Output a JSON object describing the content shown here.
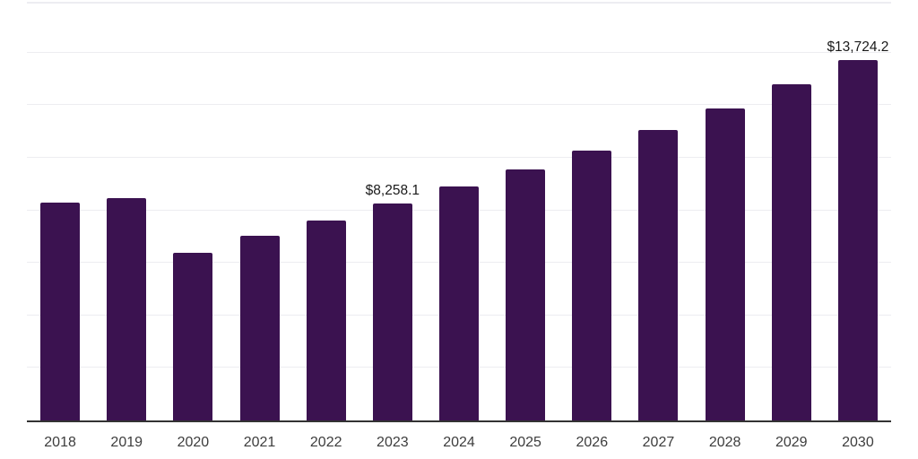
{
  "chart_data": {
    "type": "bar",
    "title": "",
    "xlabel": "",
    "ylabel": "",
    "categories": [
      "2018",
      "2019",
      "2020",
      "2021",
      "2022",
      "2023",
      "2024",
      "2025",
      "2026",
      "2027",
      "2028",
      "2029",
      "2030"
    ],
    "values": [
      8300,
      8460,
      6380,
      7040,
      7620,
      8258.1,
      8900,
      9560,
      10260,
      11070,
      11880,
      12800,
      13724.2
    ],
    "data_labels": {
      "2023": "$8,258.1",
      "2030": "$13,724.2"
    },
    "ylim": [
      0,
      16000
    ],
    "grid_step": 2000,
    "grid": "on",
    "legend": "none",
    "colors": {
      "bar": "#3B1250",
      "axis": "#333333",
      "gridline": "#EDEDF1",
      "tick_label": "#3D3D3D",
      "data_label": "#1A1A1A",
      "background": "#FFFFFF"
    }
  }
}
